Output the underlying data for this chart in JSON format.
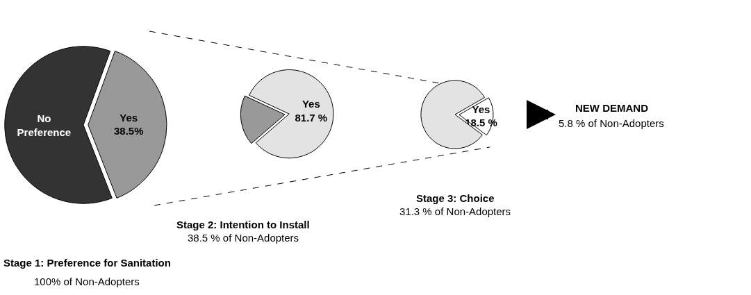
{
  "chart_data": [
    {
      "type": "pie",
      "title": "Stage 1: Preference for Sanitation",
      "subtitle": "100% of Non-Adopters",
      "categories": [
        "Yes",
        "No Preference"
      ],
      "values": [
        38.5,
        61.5
      ],
      "value_labels": [
        "38.5%",
        null
      ],
      "colors": [
        "#999999",
        "#333333"
      ]
    },
    {
      "type": "pie",
      "title": "Stage 2: Intention to Install",
      "subtitle": "38.5 % of Non-Adopters",
      "categories": [
        "Yes",
        null
      ],
      "values": [
        81.7,
        18.3
      ],
      "value_labels": [
        "81.7 %",
        null
      ],
      "colors": [
        "#e3e3e3",
        "#999999"
      ]
    },
    {
      "type": "pie",
      "title": "Stage 3: Choice",
      "subtitle": "31.3 % of Non-Adopters",
      "categories": [
        "Yes",
        null
      ],
      "values": [
        18.5,
        81.5
      ],
      "value_labels": [
        "18.5 %",
        null
      ],
      "colors": [
        "#ffffff",
        "#e3e3e3"
      ]
    },
    {
      "type": "other",
      "title": "NEW DEMAND",
      "subtitle": "5.8 % of Non-Adopters"
    }
  ]
}
